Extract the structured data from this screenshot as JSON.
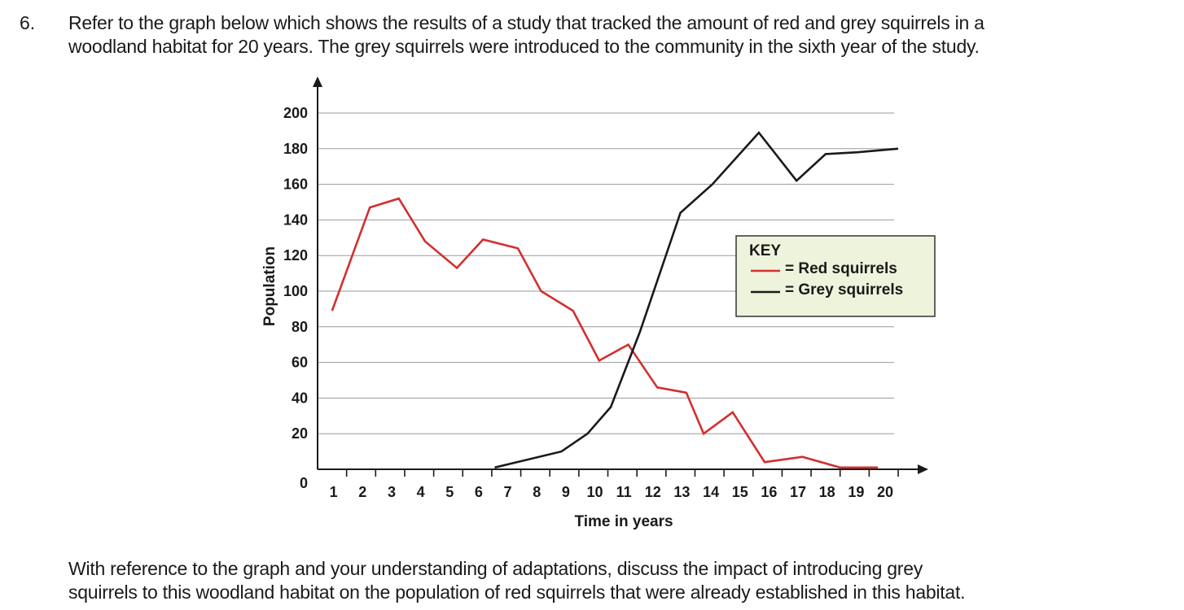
{
  "question": {
    "number": "6.",
    "lines": [
      "Refer to the graph below which shows the results of a study that tracked the amount of red and grey squirrels in a",
      "woodland habitat for 20 years. The grey squirrels were introduced to the community in the sixth year of the study."
    ]
  },
  "follow_up": {
    "lines": [
      "With reference to the graph and your understanding of adaptations, discuss the impact of introducing grey",
      "squirrels to this woodland habitat on the population of red squirrels that were already established in this habitat."
    ]
  },
  "colors": {
    "red_series": "#d32f2f",
    "grey_series": "#1a1a1a",
    "key_background": "#eef3dc",
    "grid": "#9a9a9a"
  },
  "chart_data": {
    "type": "line",
    "title": "",
    "xlabel": "Time in years",
    "ylabel": "Population",
    "xlim": [
      0,
      20
    ],
    "ylim": [
      0,
      200
    ],
    "x_ticks": [
      "1",
      "2",
      "3",
      "4",
      "5",
      "6",
      "7",
      "8",
      "9",
      "10",
      "11",
      "12",
      "13",
      "14",
      "15",
      "16",
      "17",
      "18",
      "19",
      "20"
    ],
    "y_ticks": [
      "0",
      "20",
      "40",
      "60",
      "80",
      "100",
      "120",
      "140",
      "160",
      "180",
      "200"
    ],
    "grid": true,
    "legend": {
      "title": "KEY",
      "placement": "center-right",
      "entries": [
        "= Red squirrels",
        "= Grey squirrels"
      ]
    },
    "series": [
      {
        "name": "Red squirrels",
        "color_key": "red_series",
        "x": [
          0.5,
          1.8,
          2.8,
          3.7,
          4.8,
          5.7,
          6.9,
          7.7,
          8.8,
          9.7,
          10.7,
          11.7,
          12.7,
          13.3,
          14.3,
          15.4,
          16.7,
          18.0,
          19.3
        ],
        "y": [
          89,
          147,
          152,
          128,
          113,
          129,
          124,
          100,
          89,
          61,
          70,
          46,
          43,
          20,
          32,
          4,
          7,
          1,
          1
        ]
      },
      {
        "name": "Grey squirrels",
        "color_key": "grey_series",
        "x": [
          6.1,
          8.4,
          9.3,
          10.1,
          11.1,
          12.5,
          13.6,
          15.2,
          16.5,
          17.5,
          18.6,
          20.0
        ],
        "y": [
          1,
          10,
          20,
          35,
          77,
          144,
          160,
          189,
          162,
          177,
          178,
          180
        ]
      }
    ]
  }
}
